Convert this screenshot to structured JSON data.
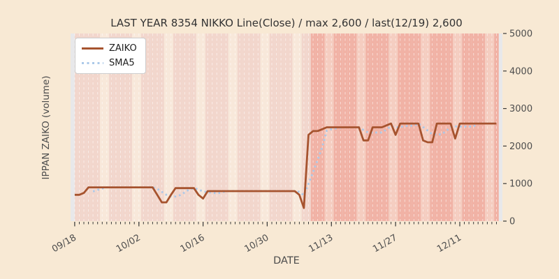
{
  "page_background": "#f8e9d4",
  "title": "LAST YEAR 8354 NIKKO Line(Close) / max 2,600 / last(12/19) 2,600",
  "axes": {
    "x_label": "DATE",
    "y_label": "IPPAN ZAIKO (volume)"
  },
  "legend": {
    "position": "upper left",
    "items": [
      {
        "label": "ZAIKO",
        "color": "#a6532e",
        "style": "solid"
      },
      {
        "label": "SMA5",
        "color": "#abc9e9",
        "style": "dotted"
      }
    ]
  },
  "chart_data": {
    "type": "line",
    "title": "LAST YEAR 8354 NIKKO Line(Close) / max 2,600 / last(12/19) 2,600",
    "xlabel": "DATE",
    "ylabel": "IPPAN ZAIKO (volume)",
    "ylim": [
      0,
      5000
    ],
    "yticks": [
      0,
      1000,
      2000,
      3000,
      4000,
      5000
    ],
    "ytick_labels": [
      "0",
      "1000",
      "2000",
      "3000",
      "4000",
      "5000"
    ],
    "xticks": [
      {
        "label": "09/18",
        "day_index": 0
      },
      {
        "label": "10/02",
        "day_index": 14
      },
      {
        "label": "10/16",
        "day_index": 28
      },
      {
        "label": "10/30",
        "day_index": 42
      },
      {
        "label": "11/13",
        "day_index": 56
      },
      {
        "label": "11/27",
        "day_index": 70
      },
      {
        "label": "12/11",
        "day_index": 84
      }
    ],
    "grid": "vertical daily dashed white lines, no horizontal gridlines",
    "legend_position": "upper left",
    "max_value": "2,600",
    "last_date": "12/19",
    "last_value": "2,600",
    "x_dates": [
      "09/18",
      "09/19",
      "09/20",
      "09/21",
      "09/22",
      "09/23",
      "09/24",
      "09/25",
      "09/26",
      "09/27",
      "09/28",
      "09/29",
      "09/30",
      "10/01",
      "10/02",
      "10/03",
      "10/04",
      "10/05",
      "10/06",
      "10/07",
      "10/08",
      "10/09",
      "10/10",
      "10/11",
      "10/12",
      "10/13",
      "10/14",
      "10/15",
      "10/16",
      "10/17",
      "10/18",
      "10/19",
      "10/20",
      "10/21",
      "10/22",
      "10/23",
      "10/24",
      "10/25",
      "10/26",
      "10/27",
      "10/28",
      "10/29",
      "10/30",
      "10/31",
      "11/01",
      "11/02",
      "11/03",
      "11/04",
      "11/05",
      "11/06",
      "11/07",
      "11/08",
      "11/09",
      "11/10",
      "11/11",
      "11/12",
      "11/13",
      "11/14",
      "11/15",
      "11/16",
      "11/17",
      "11/18",
      "11/19",
      "11/20",
      "11/21",
      "11/22",
      "11/23",
      "11/24",
      "11/25",
      "11/26",
      "11/27",
      "11/28",
      "11/29",
      "11/30",
      "12/01",
      "12/02",
      "12/03",
      "12/04",
      "12/05",
      "12/06",
      "12/07",
      "12/08",
      "12/09",
      "12/10",
      "12/11",
      "12/12",
      "12/13",
      "12/14",
      "12/15",
      "12/16",
      "12/17",
      "12/18",
      "12/19"
    ],
    "series": [
      {
        "name": "ZAIKO",
        "color": "#a6532e",
        "line_style": "solid",
        "values": [
          700,
          700,
          750,
          900,
          900,
          900,
          900,
          900,
          900,
          900,
          900,
          900,
          900,
          900,
          900,
          900,
          900,
          900,
          700,
          500,
          500,
          700,
          880,
          880,
          880,
          880,
          880,
          700,
          600,
          800,
          800,
          800,
          800,
          800,
          800,
          800,
          800,
          800,
          800,
          800,
          800,
          800,
          800,
          800,
          800,
          800,
          800,
          800,
          800,
          700,
          350,
          2300,
          2400,
          2400,
          2450,
          2500,
          2500,
          2500,
          2500,
          2500,
          2500,
          2500,
          2500,
          2150,
          2150,
          2500,
          2500,
          2500,
          2550,
          2600,
          2300,
          2600,
          2600,
          2600,
          2600,
          2600,
          2150,
          2100,
          2100,
          2600,
          2600,
          2600,
          2600,
          2200,
          2600,
          2600,
          2600,
          2600,
          2600,
          2600,
          2600,
          2600,
          2600
        ]
      },
      {
        "name": "SMA5",
        "color": "#abc9e9",
        "line_style": "dotted",
        "derived": "5-day simple moving average of ZAIKO",
        "window": 5
      }
    ],
    "background": {
      "plot_bg": "#e8e8ea",
      "weekday_band_color_early": "#f2d6cc",
      "weekend_band_color_early": "#f8e8da",
      "weekday_band_color_late": "#f1b2a5",
      "weekend_band_color_late": "#f5cdc0",
      "late_period_start_day_index": 52,
      "weekend_day_indices": [
        6,
        7,
        13,
        14,
        20,
        21,
        27,
        28,
        34,
        35,
        41,
        42,
        48,
        49,
        55,
        56,
        62,
        63,
        69,
        70,
        76,
        77,
        83,
        84,
        90,
        91
      ],
      "daily_gridline_color": "rgba(255,255,255,0.55)",
      "tick_color": "#3a3a3a",
      "tick_label_color": "#4d4d4d"
    }
  }
}
